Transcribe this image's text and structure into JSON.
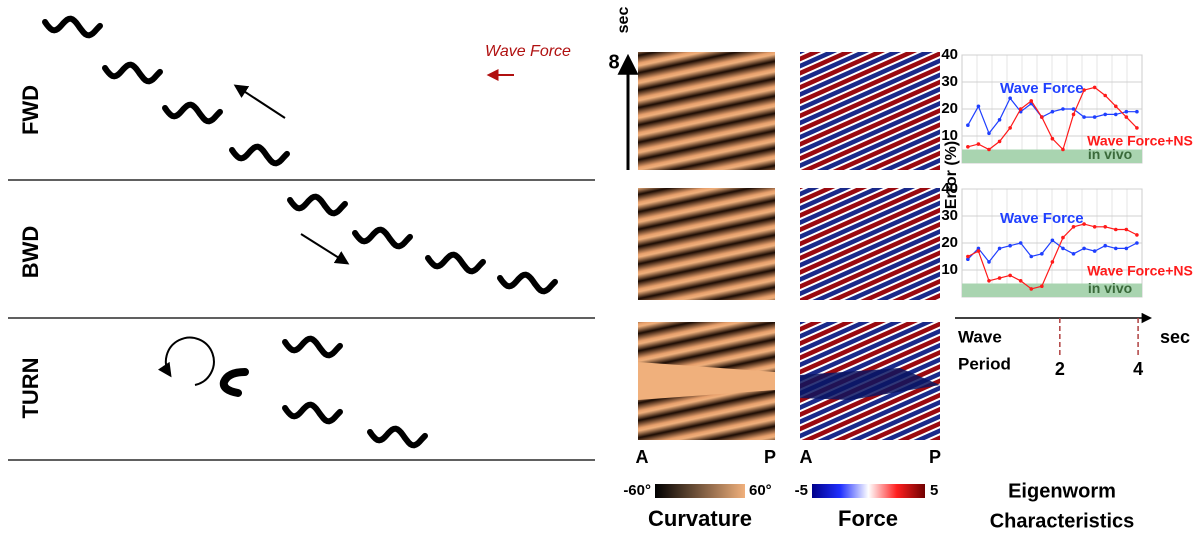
{
  "figure": {
    "rows": [
      "FWD",
      "BWD",
      "TURN"
    ],
    "wave_force_label": "Wave Force",
    "time_axis": {
      "label": "sec",
      "max": 8
    },
    "position_labels": [
      "A",
      "P"
    ],
    "colorbars": [
      {
        "min": "-60°",
        "max": "60°",
        "title": "Curvature"
      },
      {
        "min": -5,
        "max": 5,
        "title": "Force"
      }
    ],
    "eigenworm_title": [
      "Eigenworm",
      "Characteristics"
    ]
  },
  "chart_data": [
    {
      "type": "line",
      "ylabel": "Error (%)",
      "xlim": [
        -0.5,
        4.1
      ],
      "ylim": [
        0,
        40
      ],
      "yticks": [
        10,
        20,
        30,
        40
      ],
      "grid": true,
      "x": [
        -0.35,
        -0.08,
        0.19,
        0.46,
        0.73,
        1.0,
        1.27,
        1.54,
        1.81,
        2.08,
        2.35,
        2.62,
        2.89,
        3.16,
        3.43,
        3.7,
        3.97
      ],
      "in_vivo": {
        "label": "in vivo",
        "range": [
          0,
          5
        ],
        "color": "#a9d4b0"
      },
      "series": [
        {
          "name": "Wave Force",
          "color": "#1f3fff",
          "values": [
            14,
            21,
            11,
            16,
            24,
            19,
            22,
            17,
            19,
            20,
            20,
            17,
            17,
            18,
            18,
            19,
            19
          ]
        },
        {
          "name": "Wave Force+NS",
          "color": "#ff1a1a",
          "values": [
            6,
            7,
            5,
            8,
            13,
            20,
            23,
            17,
            9,
            5,
            18,
            27,
            28,
            25,
            21,
            17,
            13
          ]
        }
      ]
    },
    {
      "type": "line",
      "xlim": [
        -0.5,
        4.1
      ],
      "ylim": [
        0,
        40
      ],
      "yticks": [
        10,
        20,
        30,
        40
      ],
      "grid": true,
      "xticks": [
        2,
        4
      ],
      "xlabel": "sec",
      "x_caption": [
        "Wave",
        "Period"
      ],
      "x": [
        -0.35,
        -0.08,
        0.19,
        0.46,
        0.73,
        1.0,
        1.27,
        1.54,
        1.81,
        2.08,
        2.35,
        2.62,
        2.89,
        3.16,
        3.43,
        3.7,
        3.97
      ],
      "in_vivo": {
        "label": "in vivo",
        "range": [
          0,
          5
        ],
        "color": "#a9d4b0"
      },
      "series": [
        {
          "name": "Wave Force",
          "color": "#1f3fff",
          "values": [
            14,
            18,
            13,
            18,
            19,
            20,
            15,
            16,
            21,
            18,
            16,
            18,
            17,
            19,
            18,
            18,
            20
          ]
        },
        {
          "name": "Wave Force+NS",
          "color": "#ff1a1a",
          "values": [
            15,
            17,
            6,
            7,
            8,
            6,
            3,
            4,
            13,
            22,
            26,
            27,
            26,
            26,
            25,
            25,
            23
          ]
        }
      ]
    }
  ]
}
